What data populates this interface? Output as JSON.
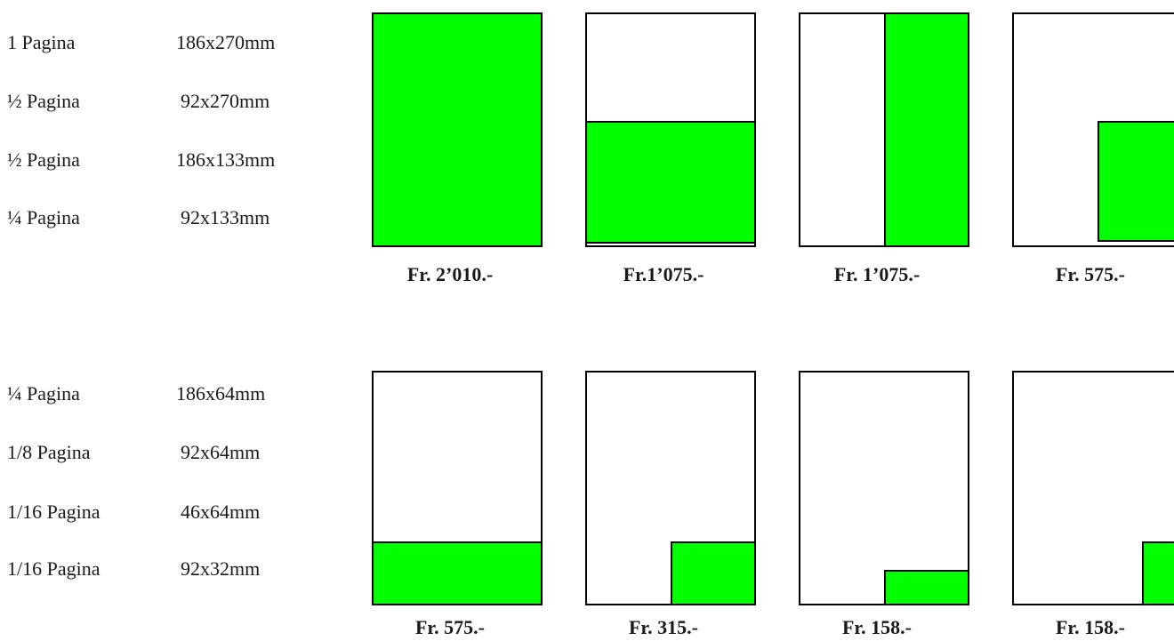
{
  "sizes_group1": [
    {
      "label": "1 Pagina",
      "dims": "186x270mm"
    },
    {
      "label": "½ Pagina",
      "dims": "92x270mm"
    },
    {
      "label": "½ Pagina",
      "dims": "186x133mm"
    },
    {
      "label": "¼ Pagina",
      "dims": "92x133mm"
    }
  ],
  "sizes_group2": [
    {
      "label": "¼ Pagina",
      "dims": "186x64mm"
    },
    {
      "label": "1/8 Pagina",
      "dims": "92x64mm"
    },
    {
      "label": "1/16 Pagina",
      "dims": "46x64mm"
    },
    {
      "label": "1/16 Pagina",
      "dims": "92x32mm"
    }
  ],
  "prices_row1": [
    "Fr. 2’010.-",
    "Fr.1’075.-",
    "Fr. 1’075.-",
    "Fr. 575.-"
  ],
  "prices_row2": [
    "Fr. 575.-",
    "Fr. 315.-",
    "Fr. 158.-",
    "Fr. 158.-"
  ],
  "colors": {
    "ad_fill": "#00ff00",
    "page_border": "#000000"
  }
}
